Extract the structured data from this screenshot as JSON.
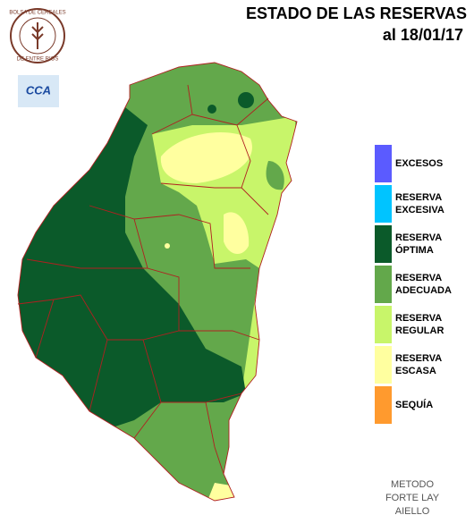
{
  "header": {
    "title": "ESTADO DE LAS RESERVAS",
    "date": "al 18/01/17"
  },
  "logo": {
    "ring_top": "BOLSA DE CEREALES",
    "ring_bottom": "DE ENTRE RIOS",
    "badge": "CCA"
  },
  "legend": [
    {
      "lines": [
        "EXCESOS"
      ],
      "color": "#5b5bff"
    },
    {
      "lines": [
        "RESERVA",
        "EXCESIVA"
      ],
      "color": "#00c4ff"
    },
    {
      "lines": [
        "RESERVA",
        "ÓPTIMA"
      ],
      "color": "#0b5a2a"
    },
    {
      "lines": [
        "RESERVA",
        "ADECUADA"
      ],
      "color": "#63a84b"
    },
    {
      "lines": [
        "RESERVA",
        "REGULAR"
      ],
      "color": "#c8f56a"
    },
    {
      "lines": [
        "RESERVA",
        "ESCASA"
      ],
      "color": "#ffff9f"
    },
    {
      "lines": [
        "SEQUÍA"
      ],
      "color": "#ff9a2e"
    }
  ],
  "method": [
    "METODO",
    "FORTE LAY",
    "AIELLO"
  ]
}
